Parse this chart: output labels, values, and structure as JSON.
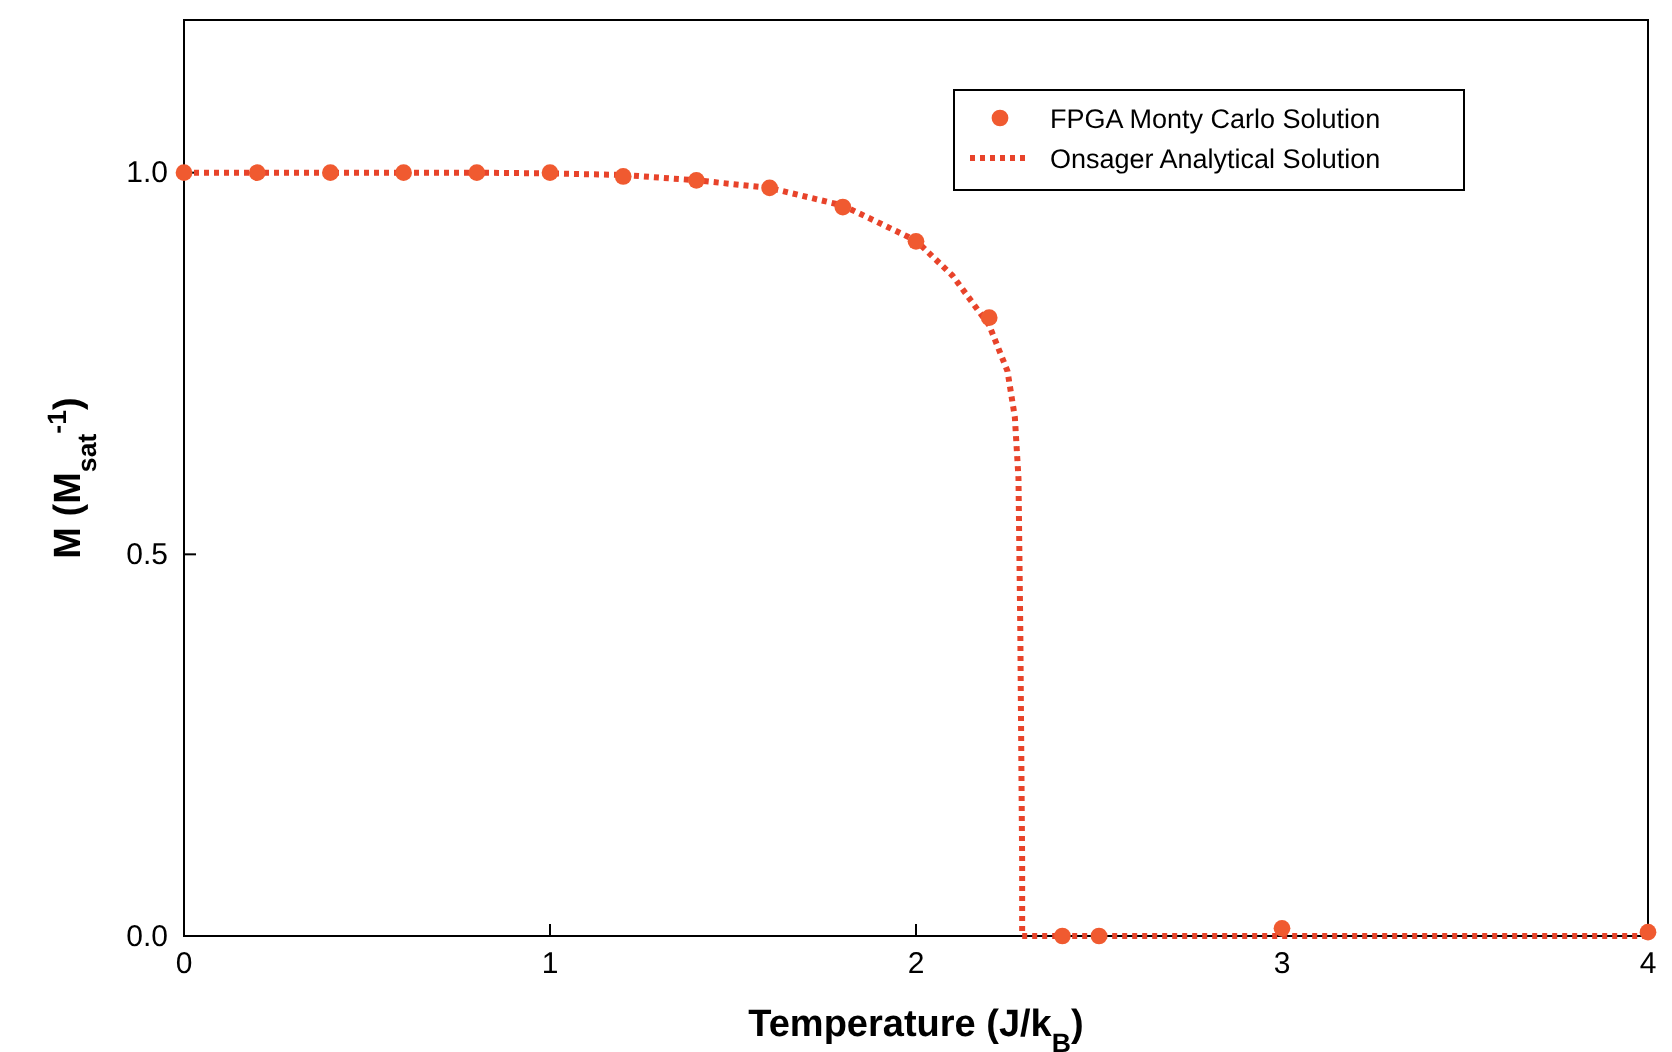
{
  "chart_data": {
    "type": "scatter",
    "xlabel": "Temperature (J/k$_{B}$)",
    "ylabel": "M  (M$_{sat}$$^{-1}$)",
    "xlim": [
      0,
      4
    ],
    "ylim": [
      0,
      1.2
    ],
    "xticks": [
      0,
      1,
      2,
      3,
      4
    ],
    "yticks": [
      {
        "value": 0,
        "label": "0.0"
      },
      {
        "value": 0.5,
        "label": "0.5"
      },
      {
        "value": 1,
        "label": "1.0"
      }
    ],
    "grid": false,
    "legend": "top right",
    "series": [
      {
        "name": "FPGA Monty Carlo Solution",
        "marker": "circle",
        "color": "#f05a30",
        "x": [
          0,
          0.2,
          0.4,
          0.6,
          0.8,
          1.0,
          1.2,
          1.4,
          1.6,
          1.8,
          2.0,
          2.2,
          2.4,
          2.5,
          3.0,
          4.0
        ],
        "values": [
          1.0,
          1.0,
          1.0,
          1.0,
          1.0,
          1.0,
          0.995,
          0.99,
          0.98,
          0.955,
          0.91,
          0.81,
          0.0,
          0.0,
          0.01,
          0.005
        ]
      },
      {
        "name": "Onsager Analytical Solution",
        "type": "line",
        "line_style": "dotted",
        "color": "#e8432a",
        "x": [
          0,
          0.4,
          0.8,
          1.0,
          1.2,
          1.4,
          1.6,
          1.8,
          2.0,
          2.1,
          2.2,
          2.25,
          2.27,
          2.28,
          2.285,
          2.29,
          2.29,
          3.0,
          4.0
        ],
        "values": [
          1.0,
          1.0,
          1.0,
          0.999,
          0.997,
          0.99,
          0.98,
          0.957,
          0.911,
          0.865,
          0.8,
          0.74,
          0.68,
          0.6,
          0.4,
          0.1,
          0.0,
          0.0,
          0.0
        ]
      }
    ]
  }
}
